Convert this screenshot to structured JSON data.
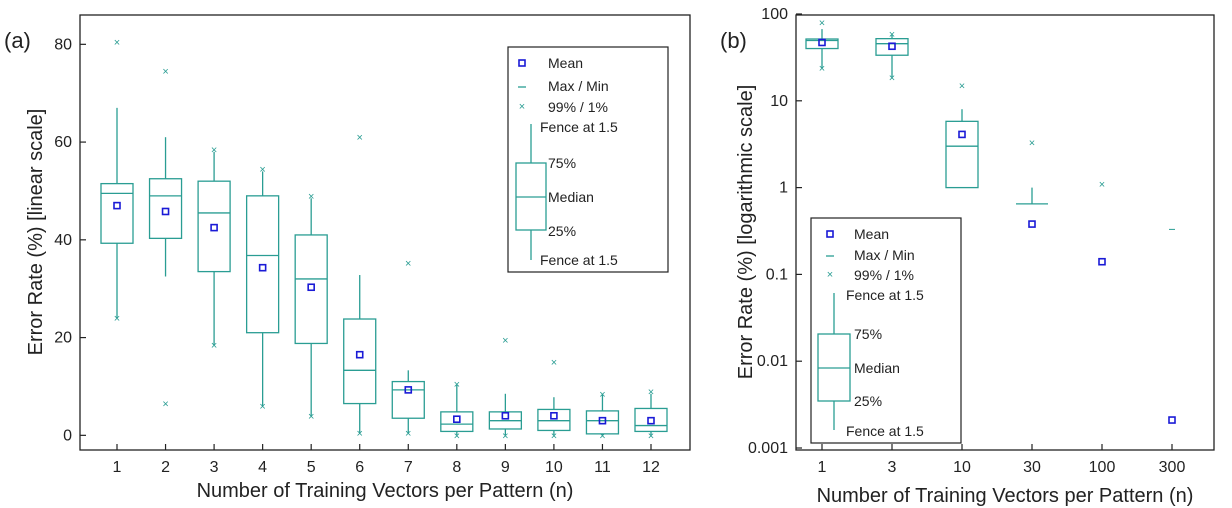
{
  "chart_data": [
    {
      "panel": "(a)",
      "type": "boxplot",
      "scale": "linear",
      "xlabel": "Number of Training Vectors per Pattern (n)",
      "ylabel": "Error Rate (%) [linear scale]",
      "ylim": [
        -3,
        86
      ],
      "yticks": [
        "0",
        "20",
        "40",
        "60",
        "80"
      ],
      "ytick_values": [
        0,
        20,
        40,
        60,
        80
      ],
      "categories": [
        "1",
        "2",
        "3",
        "4",
        "5",
        "6",
        "7",
        "8",
        "9",
        "10",
        "11",
        "12"
      ],
      "boxes": [
        {
          "p1": 24,
          "fence_low": 24,
          "q1": 39.3,
          "median": 49.5,
          "q3": 51.5,
          "fence_high": 67,
          "p99": 80.5,
          "mean": 47.0
        },
        {
          "p1": 6.5,
          "fence_low": 32.5,
          "q1": 40.3,
          "median": 49.0,
          "q3": 52.5,
          "fence_high": 61,
          "p99": 74.5,
          "mean": 45.8
        },
        {
          "p1": 18.5,
          "fence_low": 18.5,
          "q1": 33.5,
          "median": 45.5,
          "q3": 52.0,
          "fence_high": 58,
          "p99": 58.5,
          "mean": 42.5
        },
        {
          "p1": 6,
          "fence_low": 6,
          "q1": 21.0,
          "median": 36.8,
          "q3": 49.0,
          "fence_high": 54,
          "p99": 54.5,
          "mean": 34.3
        },
        {
          "p1": 4,
          "fence_low": 4,
          "q1": 18.8,
          "median": 32.0,
          "q3": 41.0,
          "fence_high": 48.5,
          "p99": 49,
          "mean": 30.3
        },
        {
          "p1": 0.5,
          "fence_low": 0.5,
          "q1": 6.5,
          "median": 13.3,
          "q3": 23.8,
          "fence_high": 32.8,
          "p99": 61,
          "mean": 16.5
        },
        {
          "p1": 0.5,
          "fence_low": 0.5,
          "q1": 3.5,
          "median": 9.3,
          "q3": 11.0,
          "fence_high": 13.3,
          "p99": 35.3,
          "mean": 9.3
        },
        {
          "p1": 0,
          "fence_low": 0,
          "q1": 0.8,
          "median": 2.3,
          "q3": 4.8,
          "fence_high": 10.3,
          "p99": 10.5,
          "mean": 3.3
        },
        {
          "p1": 0,
          "fence_low": 0,
          "q1": 1.3,
          "median": 3.0,
          "q3": 4.8,
          "fence_high": 8.5,
          "p99": 19.5,
          "mean": 4.0
        },
        {
          "p1": 0,
          "fence_low": 0,
          "q1": 1.0,
          "median": 3.0,
          "q3": 5.3,
          "fence_high": 7.8,
          "p99": 15,
          "mean": 4.0
        },
        {
          "p1": 0,
          "fence_low": 0,
          "q1": 0.3,
          "median": 3.0,
          "q3": 5.0,
          "fence_high": 8.5,
          "p99": 8.5,
          "mean": 3.0
        },
        {
          "p1": 0,
          "fence_low": 0,
          "q1": 0.8,
          "median": 2.0,
          "q3": 5.5,
          "fence_high": 8.5,
          "p99": 9,
          "mean": 3.0
        }
      ],
      "legend": {
        "position": "upper-right",
        "items": [
          "Mean",
          "Max / Min",
          "99% / 1%",
          "Fence at 1.5",
          "75%",
          "Median",
          "25%",
          "Fence at 1.5"
        ]
      }
    },
    {
      "panel": "(b)",
      "type": "boxplot",
      "scale": "log",
      "xlabel": "Number of Training Vectors per Pattern (n)",
      "ylabel": "Error Rate (%) [logarithmic scale]",
      "ylim": [
        0.001,
        100
      ],
      "yticks": [
        "0.001",
        "0.01",
        "0.1",
        "1",
        "10",
        "100"
      ],
      "ytick_values": [
        0.001,
        0.01,
        0.1,
        1,
        10,
        100
      ],
      "categories": [
        "1",
        "3",
        "10",
        "30",
        "100",
        "300"
      ],
      "boxes": [
        {
          "p1": 24,
          "fence_low": 24,
          "q1": 40,
          "median": 49.5,
          "q3": 51.5,
          "fence_high": 67,
          "p99": 80,
          "mean": 47
        },
        {
          "p1": 18.5,
          "fence_low": 18.5,
          "q1": 33.5,
          "median": 45.5,
          "q3": 52,
          "fence_high": 58,
          "p99": 59,
          "mean": 42.5
        },
        {
          "p1": null,
          "fence_low": 1.0,
          "q1": 1.0,
          "median": 3.0,
          "q3": 5.8,
          "fence_high": 8.0,
          "p99": 15,
          "mean": 4.1
        },
        {
          "p1": null,
          "fence_low": 0.65,
          "q1": 0.65,
          "median": 0.65,
          "q3": 0.65,
          "fence_high": 1.0,
          "p99": 3.3,
          "mean": 0.38
        },
        {
          "p1": null,
          "fence_low": null,
          "q1": null,
          "median": null,
          "q3": null,
          "fence_high": null,
          "p99": 1.1,
          "mean": 0.14
        },
        {
          "p1": null,
          "fence_low": null,
          "q1": null,
          "median": null,
          "q3": null,
          "fence_high": null,
          "max": 0.33,
          "p99": null,
          "mean": 0.0021
        }
      ],
      "legend": {
        "position": "lower-left",
        "items": [
          "Mean",
          "Max / Min",
          "99% / 1%",
          "Fence at 1.5",
          "75%",
          "Median",
          "25%",
          "Fence at 1.5"
        ]
      }
    }
  ],
  "colors": {
    "box": "#2a9d93",
    "mean": "#1a1ad6",
    "frame": "#222222"
  }
}
